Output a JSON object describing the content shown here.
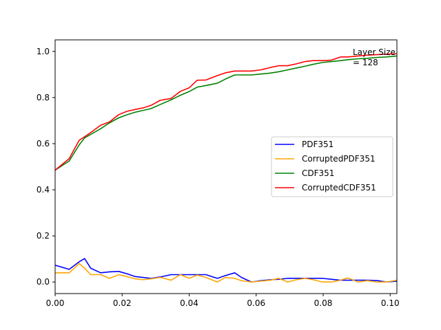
{
  "chart_data": {
    "type": "line",
    "annotation": [
      "Layer Size",
      "= 128"
    ],
    "xlim": [
      0.0,
      0.102
    ],
    "ylim": [
      -0.05,
      1.05
    ],
    "xticks": [
      0.0,
      0.02,
      0.04,
      0.06,
      0.08,
      0.1
    ],
    "xtick_labels": [
      "0.00",
      "0.02",
      "0.04",
      "0.06",
      "0.08",
      "0.10"
    ],
    "yticks": [
      0.0,
      0.2,
      0.4,
      0.6,
      0.8,
      1.0
    ],
    "ytick_labels": [
      "0.0",
      "0.2",
      "0.4",
      "0.6",
      "0.8",
      "1.0"
    ],
    "grid": false,
    "legend_position": "center-right",
    "x": [
      0.0,
      0.0042,
      0.0072,
      0.0088,
      0.0106,
      0.0136,
      0.0162,
      0.019,
      0.0214,
      0.0238,
      0.0262,
      0.0286,
      0.0314,
      0.0346,
      0.0374,
      0.04,
      0.0424,
      0.045,
      0.0484,
      0.0508,
      0.0536,
      0.0556,
      0.0586,
      0.0614,
      0.0642,
      0.0668,
      0.0694,
      0.072,
      0.0746,
      0.077,
      0.0798,
      0.0824,
      0.0852,
      0.0874,
      0.0904,
      0.0932,
      0.0962,
      0.099,
      0.102
    ],
    "series": [
      {
        "name": "PDF351",
        "color": "#0000ff",
        "values": [
          0.073,
          0.055,
          0.088,
          0.102,
          0.06,
          0.04,
          0.044,
          0.046,
          0.036,
          0.024,
          0.02,
          0.016,
          0.022,
          0.032,
          0.032,
          0.032,
          0.032,
          0.032,
          0.016,
          0.028,
          0.04,
          0.02,
          0.0,
          0.006,
          0.01,
          0.012,
          0.016,
          0.016,
          0.016,
          0.016,
          0.016,
          0.012,
          0.008,
          0.008,
          0.008,
          0.008,
          0.006,
          0.0,
          0.004
        ]
      },
      {
        "name": "CorruptedPDF351",
        "color": "#ffa500",
        "values": [
          0.04,
          0.04,
          0.08,
          0.06,
          0.032,
          0.032,
          0.016,
          0.032,
          0.024,
          0.014,
          0.01,
          0.014,
          0.02,
          0.008,
          0.032,
          0.016,
          0.03,
          0.02,
          0.0,
          0.02,
          0.016,
          0.006,
          0.0,
          0.004,
          0.008,
          0.016,
          0.0,
          0.01,
          0.016,
          0.01,
          0.0,
          0.0,
          0.008,
          0.018,
          0.0,
          0.006,
          0.0,
          0.0,
          0.008
        ]
      },
      {
        "name": "CDF351",
        "color": "#008000",
        "values": [
          0.485,
          0.525,
          0.595,
          0.625,
          0.64,
          0.665,
          0.69,
          0.712,
          0.725,
          0.736,
          0.744,
          0.752,
          0.77,
          0.79,
          0.81,
          0.826,
          0.845,
          0.852,
          0.862,
          0.88,
          0.898,
          0.898,
          0.898,
          0.902,
          0.906,
          0.912,
          0.92,
          0.928,
          0.936,
          0.944,
          0.952,
          0.956,
          0.96,
          0.964,
          0.968,
          0.97,
          0.974,
          0.976,
          0.98
        ]
      },
      {
        "name": "CorruptedCDF351",
        "color": "#ff0000",
        "values": [
          0.485,
          0.535,
          0.615,
          0.63,
          0.648,
          0.68,
          0.694,
          0.726,
          0.74,
          0.748,
          0.755,
          0.766,
          0.788,
          0.796,
          0.827,
          0.842,
          0.875,
          0.876,
          0.895,
          0.907,
          0.915,
          0.915,
          0.915,
          0.92,
          0.93,
          0.938,
          0.938,
          0.946,
          0.956,
          0.96,
          0.96,
          0.962,
          0.976,
          0.976,
          0.98,
          0.984,
          0.986,
          0.988,
          0.99
        ]
      }
    ]
  }
}
